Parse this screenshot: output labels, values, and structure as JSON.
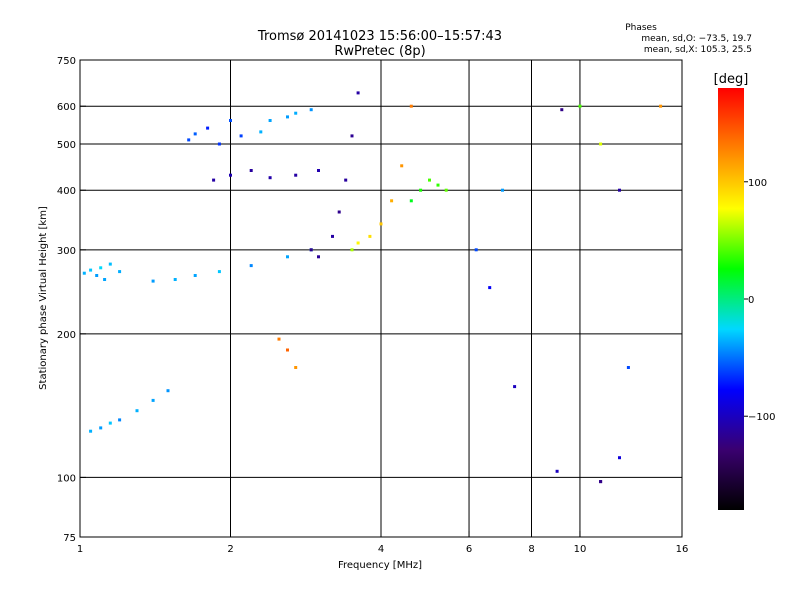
{
  "chart_data": {
    "type": "scatter",
    "title": "Tromsø 20141023 15:56:00–15:57:43",
    "subtitle": "RwPretec (8p)",
    "xlabel": "Frequency [MHz]",
    "ylabel": "Stationary phase Virtual Height [km]",
    "x_scale": "log",
    "y_scale": "log",
    "xlim": [
      1,
      16
    ],
    "ylim": [
      75,
      750
    ],
    "x_ticks": [
      1,
      2,
      4,
      6,
      8,
      10,
      16
    ],
    "y_ticks": [
      75,
      100,
      200,
      300,
      400,
      500,
      600,
      750
    ],
    "x_gridlines": [
      2,
      4,
      6,
      8,
      10
    ],
    "y_gridlines": [
      100,
      200,
      300,
      400,
      500,
      600
    ],
    "grid": true,
    "stats": {
      "header": "Phases",
      "line1": "mean, sd,O: −73.5, 19.7",
      "line2": "mean, sd,X: 105.3, 25.5"
    },
    "colorbar": {
      "label": "[deg]",
      "range": [
        -180,
        180
      ],
      "ticks": [
        100,
        0,
        -100
      ],
      "tick_labels": [
        "100",
        "0",
        "−100"
      ],
      "palette": [
        "#000000",
        "#3a0070",
        "#0000ff",
        "#00d8ff",
        "#00ff00",
        "#ffff00",
        "#ff8000",
        "#ff0000"
      ]
    },
    "series": [
      {
        "x": [
          1.02,
          1.05,
          1.08,
          1.1,
          1.12,
          1.15,
          1.2
        ],
        "y": [
          268,
          272,
          265,
          275,
          260,
          280,
          270
        ],
        "phase": [
          -35,
          -30,
          -40,
          -25,
          -38,
          -32,
          -36
        ]
      },
      {
        "x": [
          1.05,
          1.1,
          1.15,
          1.2,
          1.3,
          1.4,
          1.5
        ],
        "y": [
          125,
          127,
          130,
          132,
          138,
          145,
          152
        ],
        "phase": [
          -35,
          -40,
          -30,
          -45,
          -35,
          -38,
          -42
        ]
      },
      {
        "x": [
          1.4,
          1.55,
          1.7,
          1.9,
          2.2,
          2.6,
          2.9
        ],
        "y": [
          258,
          260,
          265,
          270,
          278,
          290,
          300
        ],
        "phase": [
          -40,
          -35,
          -38,
          -30,
          -45,
          -38,
          -40
        ]
      },
      {
        "x": [
          1.65,
          1.7,
          1.8,
          1.9,
          2.0,
          2.1
        ],
        "y": [
          510,
          525,
          540,
          500,
          560,
          520
        ],
        "phase": [
          -60,
          -55,
          -70,
          -65,
          -58,
          -62
        ]
      },
      {
        "x": [
          2.3,
          2.4,
          2.6,
          2.7,
          2.9
        ],
        "y": [
          530,
          560,
          570,
          580,
          590
        ],
        "phase": [
          -35,
          -38,
          -40,
          -36,
          -42
        ]
      },
      {
        "x": [
          1.85,
          2.0,
          2.2,
          2.4,
          2.7,
          3.0
        ],
        "y": [
          420,
          430,
          440,
          425,
          430,
          440
        ],
        "phase": [
          -110,
          -105,
          -112,
          -108,
          -110,
          -106
        ]
      },
      {
        "x": [
          2.9,
          3.0,
          3.2,
          3.3,
          3.4,
          3.5,
          3.6
        ],
        "y": [
          300,
          290,
          320,
          360,
          420,
          520,
          640
        ],
        "phase": [
          -120,
          -115,
          -110,
          -118,
          -112,
          -116,
          -110
        ]
      },
      {
        "x": [
          3.5,
          3.6,
          3.8,
          4.0,
          4.2,
          4.4,
          4.6
        ],
        "y": [
          300,
          310,
          320,
          340,
          380,
          450,
          600
        ],
        "phase": [
          60,
          80,
          90,
          100,
          110,
          120,
          130
        ]
      },
      {
        "x": [
          4.6,
          4.8,
          5.0,
          5.2,
          5.4
        ],
        "y": [
          380,
          400,
          420,
          410,
          400
        ],
        "phase": [
          20,
          30,
          40,
          35,
          45
        ]
      },
      {
        "x": [
          6.2,
          6.6,
          7.0,
          7.4
        ],
        "y": [
          300,
          250,
          400,
          155
        ],
        "phase": [
          -60,
          -80,
          -40,
          -100
        ]
      },
      {
        "x": [
          9.2,
          10.0,
          11.0,
          12.0,
          12.5,
          14.5
        ],
        "y": [
          590,
          600,
          500,
          400,
          170,
          600
        ],
        "phase": [
          -120,
          40,
          70,
          -110,
          -60,
          120
        ]
      },
      {
        "x": [
          9.0,
          11.0,
          12.0,
          11.0
        ],
        "y": [
          103,
          98,
          110,
          98
        ],
        "phase": [
          -100,
          -120,
          -90,
          -120
        ]
      },
      {
        "x": [
          2.5,
          2.6,
          2.7
        ],
        "y": [
          195,
          185,
          170
        ],
        "phase": [
          130,
          140,
          120
        ]
      }
    ]
  }
}
